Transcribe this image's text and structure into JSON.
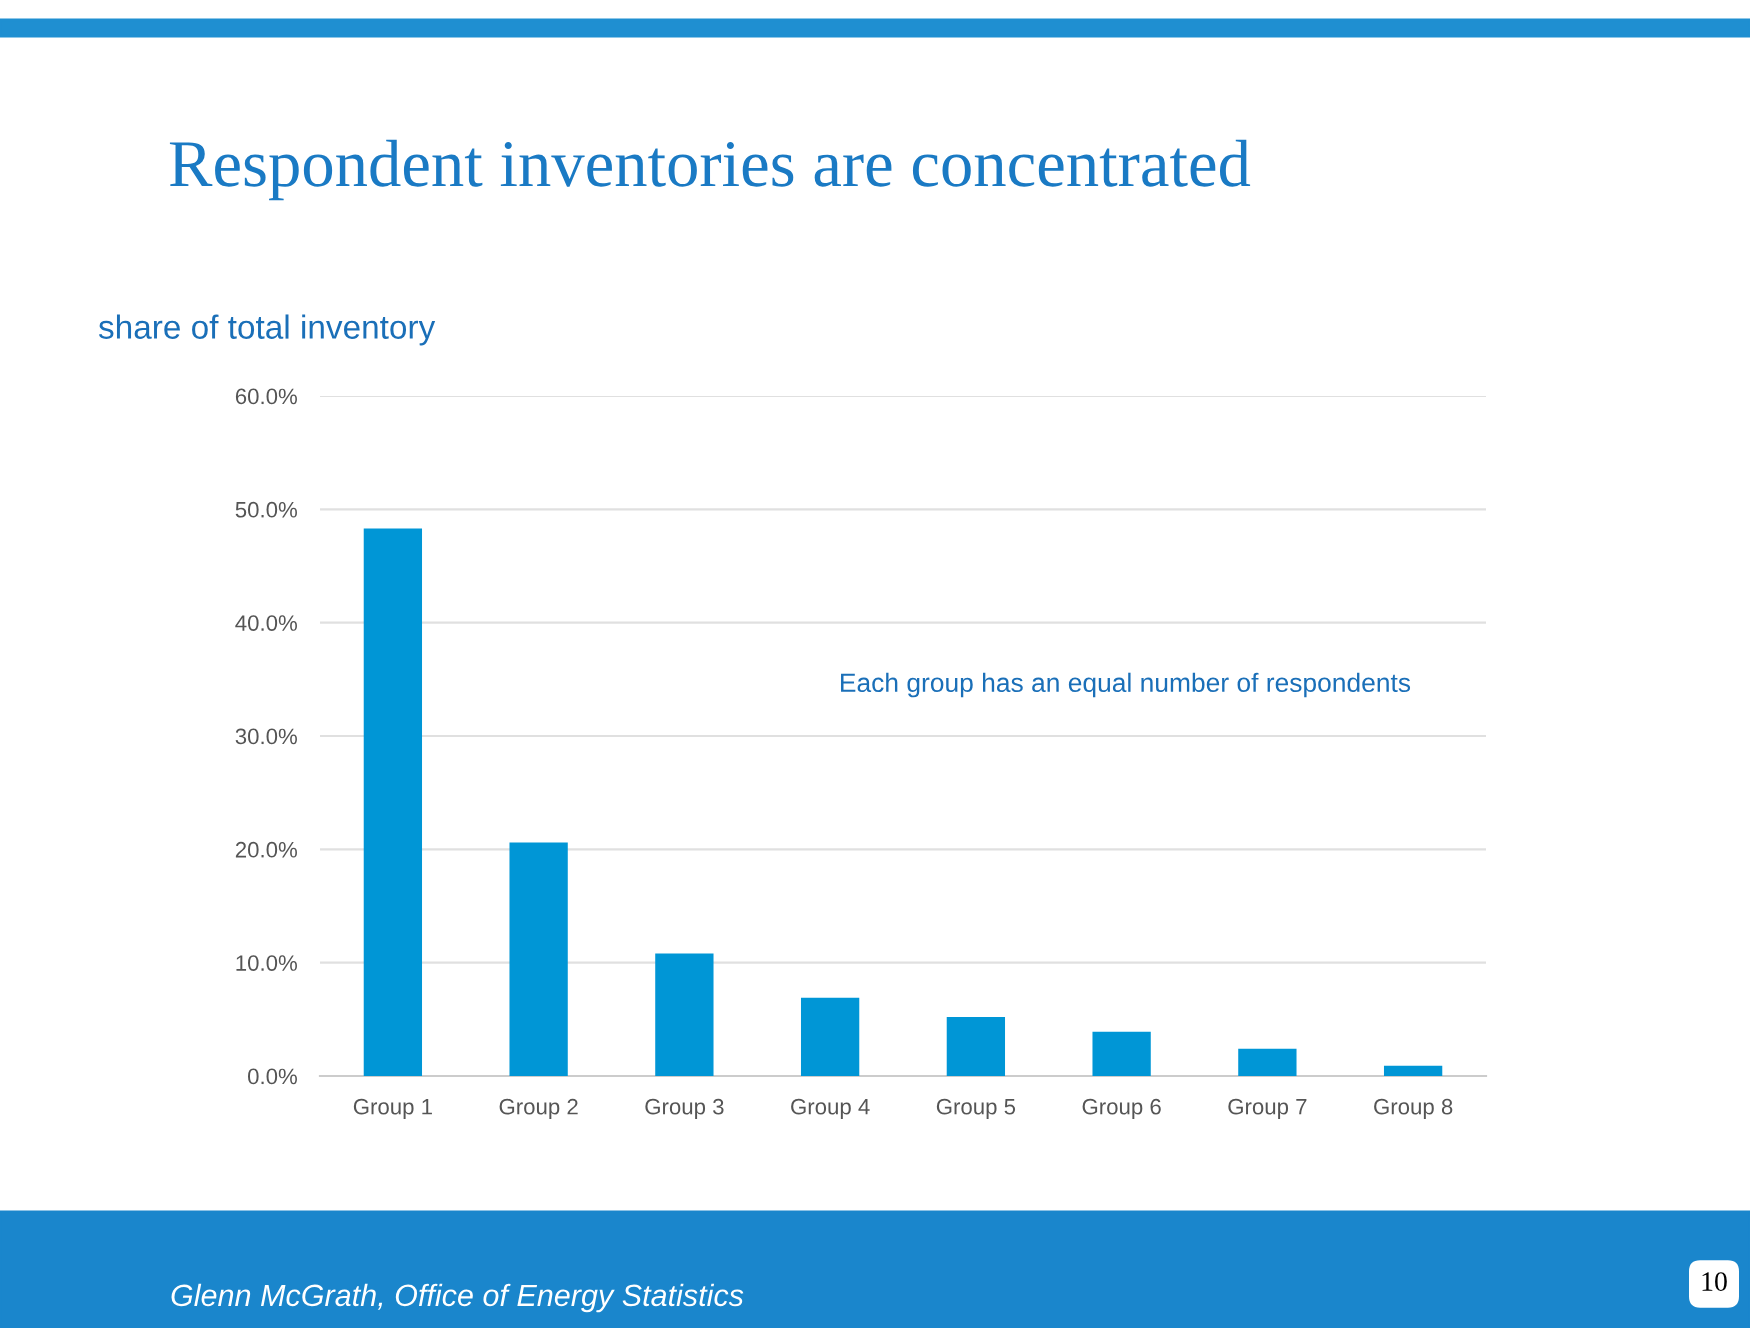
{
  "chart_data": {
    "type": "bar",
    "title": "Respondent inventories are concentrated",
    "ylabel": "share of total inventory",
    "categories": [
      "Group 1",
      "Group 2",
      "Group 3",
      "Group 4",
      "Group 5",
      "Group 6",
      "Group 7",
      "Group 8"
    ],
    "values": [
      48.3,
      20.6,
      10.8,
      6.9,
      5.2,
      3.9,
      2.4,
      0.9
    ],
    "color": "#0096d6",
    "ylim": [
      0,
      60
    ],
    "yticks": [
      {
        "value": 0,
        "label": "0.0%"
      },
      {
        "value": 10,
        "label": "10.0%"
      },
      {
        "value": 20,
        "label": "20.0%"
      },
      {
        "value": 30,
        "label": "30.0%"
      },
      {
        "value": 40,
        "label": "40.0%"
      },
      {
        "value": 50,
        "label": "50.0%"
      },
      {
        "value": 60,
        "label": "60.0%"
      }
    ],
    "grid": "y",
    "annotations": [
      "Each group has an equal number of respondents",
      "Glenn McGrath, Office of Energy Statistics",
      "10"
    ]
  }
}
